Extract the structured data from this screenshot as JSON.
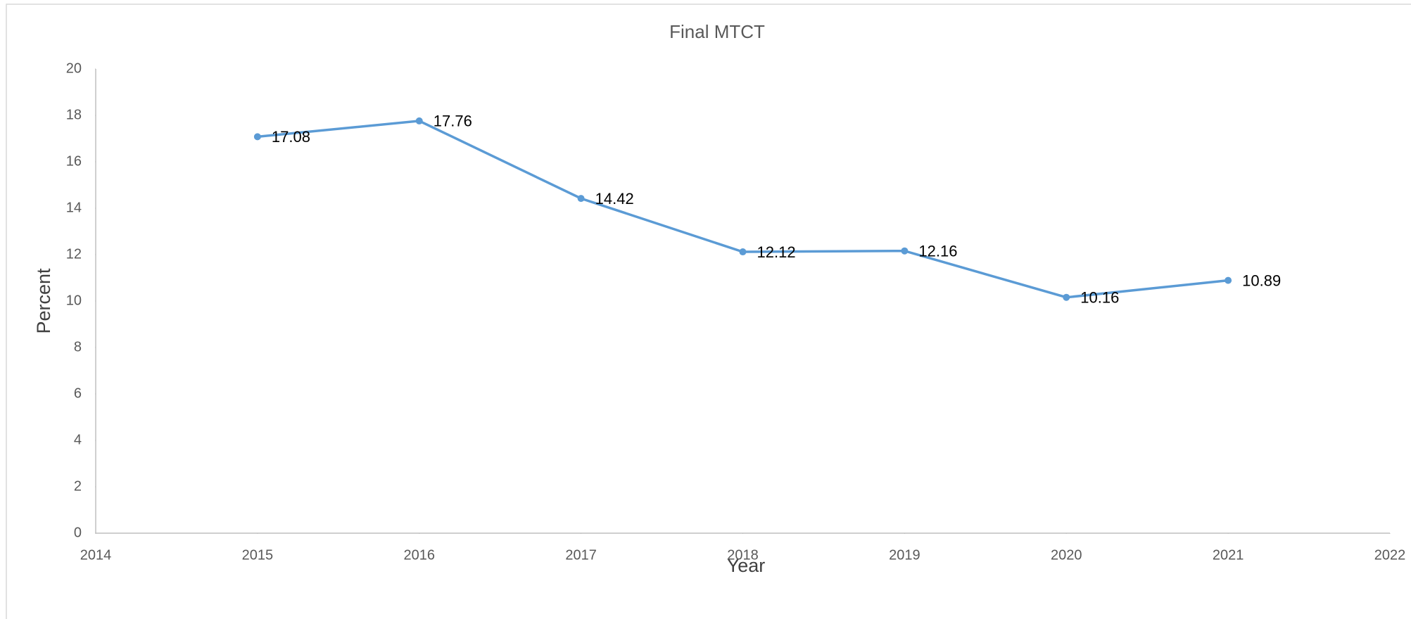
{
  "chart_data": {
    "type": "line",
    "title": "Final MTCT",
    "x_label": "Year",
    "y_label": "Percent",
    "x": [
      2015,
      2016,
      2017,
      2018,
      2019,
      2020,
      2021
    ],
    "series": [
      {
        "name": "Final MTCT",
        "color": "#5b9bd5",
        "values": [
          17.08,
          17.76,
          14.42,
          12.12,
          12.16,
          10.16,
          10.89
        ]
      }
    ],
    "xlim": [
      2014,
      2022
    ],
    "xticks": [
      2014,
      2015,
      2016,
      2017,
      2018,
      2019,
      2020,
      2021,
      2022
    ],
    "ylim": [
      0,
      20
    ],
    "yticks": [
      0,
      2,
      4,
      6,
      8,
      10,
      12,
      14,
      16,
      18,
      20
    ],
    "grid": false,
    "legend": false
  }
}
